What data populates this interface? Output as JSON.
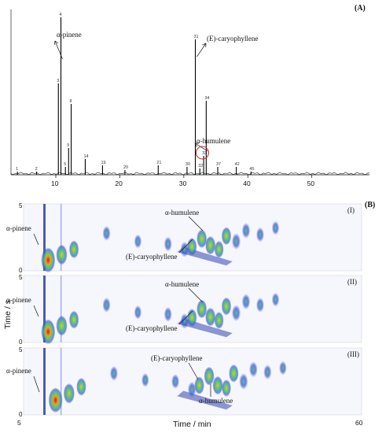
{
  "panels": {
    "a_label": "(A)",
    "b_label": "(B)"
  },
  "chart_data": [
    {
      "type": "line",
      "panel": "(A)",
      "x_ticks": [
        10,
        20,
        30,
        40,
        50
      ],
      "xlim": [
        3,
        59
      ],
      "grid": false,
      "peaks": [
        {
          "id": "1",
          "rt": 4.0,
          "height": 0.02
        },
        {
          "id": "2",
          "rt": 7.0,
          "height": 0.02
        },
        {
          "id": "3",
          "rt": 10.4,
          "height": 0.58
        },
        {
          "id": "4",
          "rt": 10.8,
          "height": 1.0
        },
        {
          "id": "5",
          "rt": 11.5,
          "height": 0.05
        },
        {
          "id": "8",
          "rt": 12.4,
          "height": 0.45
        },
        {
          "id": "9",
          "rt": 12.0,
          "height": 0.17
        },
        {
          "id": "14",
          "rt": 14.6,
          "height": 0.1
        },
        {
          "id": "19",
          "rt": 17.3,
          "height": 0.06
        },
        {
          "id": "20",
          "rt": 20.8,
          "height": 0.03
        },
        {
          "id": "21",
          "rt": 26.0,
          "height": 0.06
        },
        {
          "id": "30",
          "rt": 30.5,
          "height": 0.05
        },
        {
          "id": "31",
          "rt": 31.8,
          "height": 0.86
        },
        {
          "id": "32",
          "rt": 32.5,
          "height": 0.04
        },
        {
          "id": "33",
          "rt": 33.1,
          "height": 0.12
        },
        {
          "id": "34",
          "rt": 33.5,
          "height": 0.47
        },
        {
          "id": "37",
          "rt": 35.3,
          "height": 0.05
        },
        {
          "id": "42",
          "rt": 38.2,
          "height": 0.05
        },
        {
          "id": "45",
          "rt": 40.5,
          "height": 0.02
        }
      ],
      "annotations": [
        "α-pinene",
        "(E)-caryophyllene",
        "α-humulene"
      ]
    },
    {
      "type": "heatmap",
      "panel": "(B)",
      "xlabel": "Time / min",
      "ylabel": "Time / s",
      "xlim": [
        5,
        60
      ],
      "ylim": [
        0,
        5
      ],
      "x_ticks": [
        "5",
        "60"
      ],
      "y_ticks": [
        "0",
        "5"
      ],
      "subpanels": [
        {
          "label": "(I)",
          "annotations": [
            "α-pinene",
            "α-humulene",
            "(E)-caryophyllene"
          ]
        },
        {
          "label": "(II)",
          "annotations": [
            "α-pinene",
            "α-humulene",
            "(E)-caryophyllene"
          ]
        },
        {
          "label": "(III)",
          "annotations": [
            "α-pinene",
            "(E)-caryophyllene",
            "α-humulene"
          ]
        }
      ]
    }
  ]
}
